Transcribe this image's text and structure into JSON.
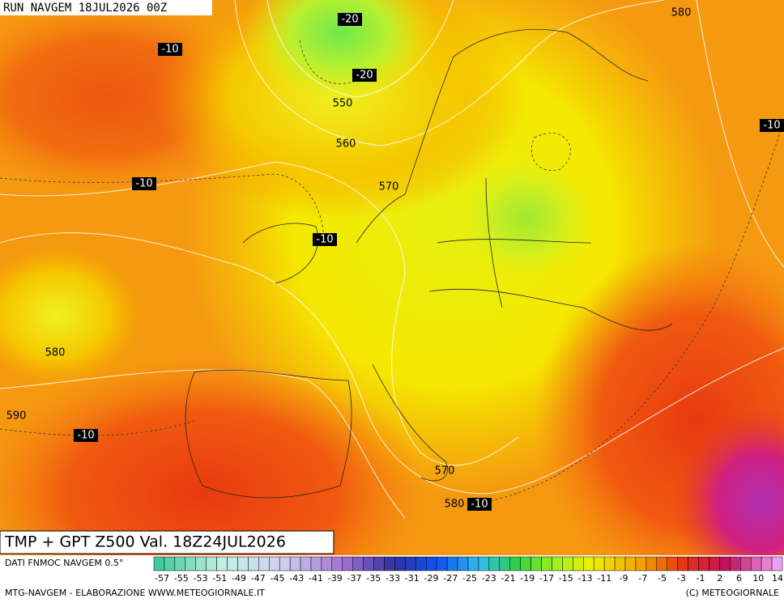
{
  "header": {
    "run": "RUN NAVGEM 18JUL2026 00Z"
  },
  "map": {
    "contour_labels": [
      -20,
      -10,
      -20,
      550,
      560,
      -10,
      570,
      -10,
      580,
      590,
      -10,
      570,
      580,
      -10,
      -10,
      580
    ]
  },
  "footer": {
    "title": "TMP + GPT Z500 Val. 18Z24JUL2026",
    "source": "DATI FNMOC NAVGEM 0.5°",
    "credit_left": "MTG-NAVGEM - ELABORAZIONE WWW.METEOGIORNALE.IT",
    "credit_right": "(C) METEOGIORNALE",
    "scale_labels": [
      -57,
      -55,
      -53,
      -51,
      -49,
      -47,
      -45,
      -43,
      -41,
      -39,
      -37,
      -35,
      -33,
      -31,
      -29,
      -27,
      -25,
      -23,
      -21,
      -19,
      -17,
      -15,
      -13,
      -11,
      -9,
      -7,
      -5,
      -3,
      -1,
      2,
      6,
      10,
      14
    ]
  }
}
